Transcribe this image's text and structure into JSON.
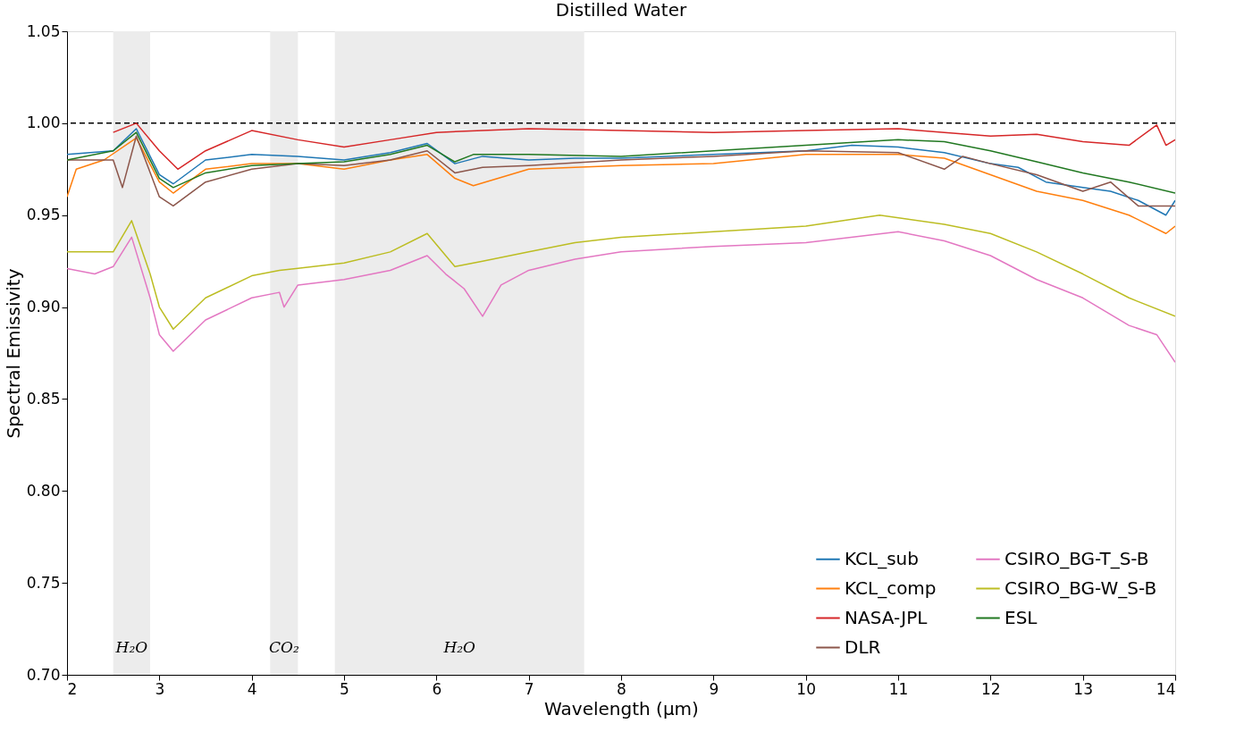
{
  "chart_data": {
    "type": "line",
    "title": "Distilled Water",
    "xlabel": "Wavelength (μm)",
    "ylabel": "Spectral Emissivity",
    "xlim": [
      2,
      14
    ],
    "ylim": [
      0.7,
      1.05
    ],
    "xticks": [
      2,
      3,
      4,
      5,
      6,
      7,
      8,
      9,
      10,
      11,
      12,
      13,
      14
    ],
    "yticks": [
      {
        "value": 0.7,
        "label": "0.70"
      },
      {
        "value": 0.75,
        "label": "0.75"
      },
      {
        "value": 0.8,
        "label": "0.80"
      },
      {
        "value": 0.85,
        "label": "0.85"
      },
      {
        "value": 0.9,
        "label": "0.90"
      },
      {
        "value": 0.95,
        "label": "0.95"
      },
      {
        "value": 1.0,
        "label": "1.00"
      },
      {
        "value": 1.05,
        "label": "1.05"
      }
    ],
    "grid": false,
    "legend": "bottom right",
    "line_style": "solid",
    "marker": "none",
    "ref_lines": [
      {
        "axis": "y",
        "value": 1.0,
        "color": "#000000",
        "line_style": "dashed"
      }
    ],
    "bands": [
      {
        "axis": "x",
        "from": 2.5,
        "to": 2.9,
        "color": "#ececec"
      },
      {
        "axis": "x",
        "from": 4.2,
        "to": 4.5,
        "color": "#ececec"
      },
      {
        "axis": "x",
        "from": 4.9,
        "to": 7.6,
        "color": "#ececec"
      }
    ],
    "annotations": [
      "H₂O",
      "CO₂",
      "H₂O"
    ],
    "series": [
      {
        "name": "KCL_sub",
        "color": "#1f77b4",
        "x": [
          2.0,
          2.5,
          2.75,
          3.0,
          3.15,
          3.5,
          4.0,
          4.5,
          5.0,
          5.5,
          5.9,
          6.2,
          6.5,
          7,
          7.5,
          8,
          9,
          10,
          10.5,
          11,
          11.5,
          12,
          12.3,
          12.6,
          13,
          13.3,
          13.6,
          13.9,
          14
        ],
        "values": [
          0.983,
          0.985,
          0.997,
          0.972,
          0.967,
          0.98,
          0.983,
          0.982,
          0.98,
          0.984,
          0.989,
          0.978,
          0.982,
          0.98,
          0.981,
          0.981,
          0.983,
          0.985,
          0.988,
          0.987,
          0.984,
          0.978,
          0.976,
          0.968,
          0.965,
          0.963,
          0.958,
          0.95,
          0.958
        ]
      },
      {
        "name": "KCL_comp",
        "color": "#ff7f0e",
        "x": [
          2.0,
          2.1,
          2.4,
          2.75,
          3.0,
          3.15,
          3.5,
          4.0,
          4.5,
          5.0,
          5.5,
          5.9,
          6.2,
          6.4,
          7,
          7.5,
          8,
          9,
          10,
          11,
          11.5,
          12,
          12.5,
          13,
          13.5,
          13.9,
          14
        ],
        "values": [
          0.96,
          0.975,
          0.98,
          0.992,
          0.968,
          0.962,
          0.975,
          0.978,
          0.978,
          0.975,
          0.98,
          0.983,
          0.97,
          0.966,
          0.975,
          0.976,
          0.977,
          0.978,
          0.983,
          0.983,
          0.981,
          0.972,
          0.963,
          0.958,
          0.95,
          0.94,
          0.944
        ]
      },
      {
        "name": "NASA-JPL",
        "color": "#d62728",
        "x": [
          2.5,
          2.75,
          3.0,
          3.2,
          3.5,
          4.0,
          4.5,
          5.0,
          5.5,
          6.0,
          6.5,
          7,
          8,
          9,
          10,
          11,
          11.5,
          12,
          12.5,
          13,
          13.5,
          13.8,
          13.9,
          14
        ],
        "values": [
          0.995,
          1.0,
          0.985,
          0.975,
          0.985,
          0.996,
          0.991,
          0.987,
          0.991,
          0.995,
          0.996,
          0.997,
          0.996,
          0.995,
          0.996,
          0.997,
          0.995,
          0.993,
          0.994,
          0.99,
          0.988,
          0.999,
          0.988,
          0.991
        ]
      },
      {
        "name": "DLR",
        "color": "#8c564b",
        "x": [
          2.0,
          2.5,
          2.6,
          2.75,
          3.0,
          3.15,
          3.5,
          4.0,
          4.5,
          5.0,
          5.5,
          5.9,
          6.2,
          6.5,
          7,
          8,
          9,
          10,
          11,
          11.5,
          11.7,
          12,
          12.5,
          13,
          13.3,
          13.6,
          14
        ],
        "values": [
          0.98,
          0.98,
          0.965,
          0.993,
          0.96,
          0.955,
          0.968,
          0.975,
          0.978,
          0.977,
          0.98,
          0.985,
          0.973,
          0.976,
          0.977,
          0.98,
          0.982,
          0.985,
          0.984,
          0.975,
          0.982,
          0.978,
          0.972,
          0.963,
          0.968,
          0.955,
          0.955
        ]
      },
      {
        "name": "CSIRO_BG-T_S-B",
        "color": "#e377c2",
        "x": [
          2.0,
          2.3,
          2.5,
          2.7,
          2.9,
          3.0,
          3.15,
          3.5,
          4.0,
          4.3,
          4.35,
          4.5,
          5.0,
          5.5,
          5.9,
          6.1,
          6.3,
          6.5,
          6.7,
          7,
          7.5,
          8,
          9,
          10,
          11,
          11.5,
          12,
          12.5,
          13,
          13.5,
          13.8,
          14
        ],
        "values": [
          0.921,
          0.918,
          0.922,
          0.938,
          0.905,
          0.885,
          0.876,
          0.893,
          0.905,
          0.908,
          0.9,
          0.912,
          0.915,
          0.92,
          0.928,
          0.918,
          0.91,
          0.895,
          0.912,
          0.92,
          0.926,
          0.93,
          0.933,
          0.935,
          0.941,
          0.936,
          0.928,
          0.915,
          0.905,
          0.89,
          0.885,
          0.87
        ]
      },
      {
        "name": "CSIRO_BG-W_S-B",
        "color": "#bcbd22",
        "x": [
          2.0,
          2.5,
          2.7,
          2.9,
          3.0,
          3.15,
          3.5,
          4.0,
          4.3,
          4.5,
          5.0,
          5.5,
          5.9,
          6.2,
          6.5,
          7,
          7.5,
          8,
          9,
          10,
          10.8,
          11.5,
          12,
          12.5,
          13,
          13.5,
          14
        ],
        "values": [
          0.93,
          0.93,
          0.947,
          0.918,
          0.9,
          0.888,
          0.905,
          0.917,
          0.92,
          0.921,
          0.924,
          0.93,
          0.94,
          0.922,
          0.925,
          0.93,
          0.935,
          0.938,
          0.941,
          0.944,
          0.95,
          0.945,
          0.94,
          0.93,
          0.918,
          0.905,
          0.895
        ]
      },
      {
        "name": "ESL",
        "color": "#217821",
        "x": [
          2.0,
          2.5,
          2.75,
          3.0,
          3.15,
          3.5,
          4.0,
          4.5,
          5.0,
          5.5,
          5.9,
          6.2,
          6.4,
          7.0,
          8,
          9,
          10,
          11,
          11.5,
          12,
          12.5,
          13,
          13.5,
          14
        ],
        "values": [
          0.98,
          0.985,
          0.995,
          0.97,
          0.965,
          0.973,
          0.977,
          0.978,
          0.979,
          0.983,
          0.988,
          0.979,
          0.983,
          0.983,
          0.982,
          0.985,
          0.988,
          0.991,
          0.99,
          0.985,
          0.979,
          0.973,
          0.968,
          0.962
        ]
      }
    ]
  }
}
